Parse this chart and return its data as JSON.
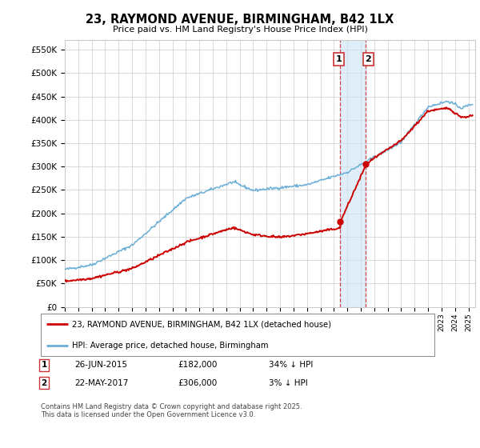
{
  "title": "23, RAYMOND AVENUE, BIRMINGHAM, B42 1LX",
  "subtitle": "Price paid vs. HM Land Registry's House Price Index (HPI)",
  "ylabel_ticks": [
    "£0",
    "£50K",
    "£100K",
    "£150K",
    "£200K",
    "£250K",
    "£300K",
    "£350K",
    "£400K",
    "£450K",
    "£500K",
    "£550K"
  ],
  "ytick_values": [
    0,
    50000,
    100000,
    150000,
    200000,
    250000,
    300000,
    350000,
    400000,
    450000,
    500000,
    550000
  ],
  "ylim": [
    0,
    570000
  ],
  "xlim_start": 1995.0,
  "xlim_end": 2025.5,
  "hpi_color": "#6baed6",
  "price_color": "#cc0000",
  "transaction1_date": 2015.48,
  "transaction1_price": 182000,
  "transaction2_date": 2017.38,
  "transaction2_price": 306000,
  "legend_label1": "23, RAYMOND AVENUE, BIRMINGHAM, B42 1LX (detached house)",
  "legend_label2": "HPI: Average price, detached house, Birmingham",
  "footer": "Contains HM Land Registry data © Crown copyright and database right 2025.\nThis data is licensed under the Open Government Licence v3.0.",
  "background_color": "#ffffff",
  "grid_color": "#cccccc"
}
